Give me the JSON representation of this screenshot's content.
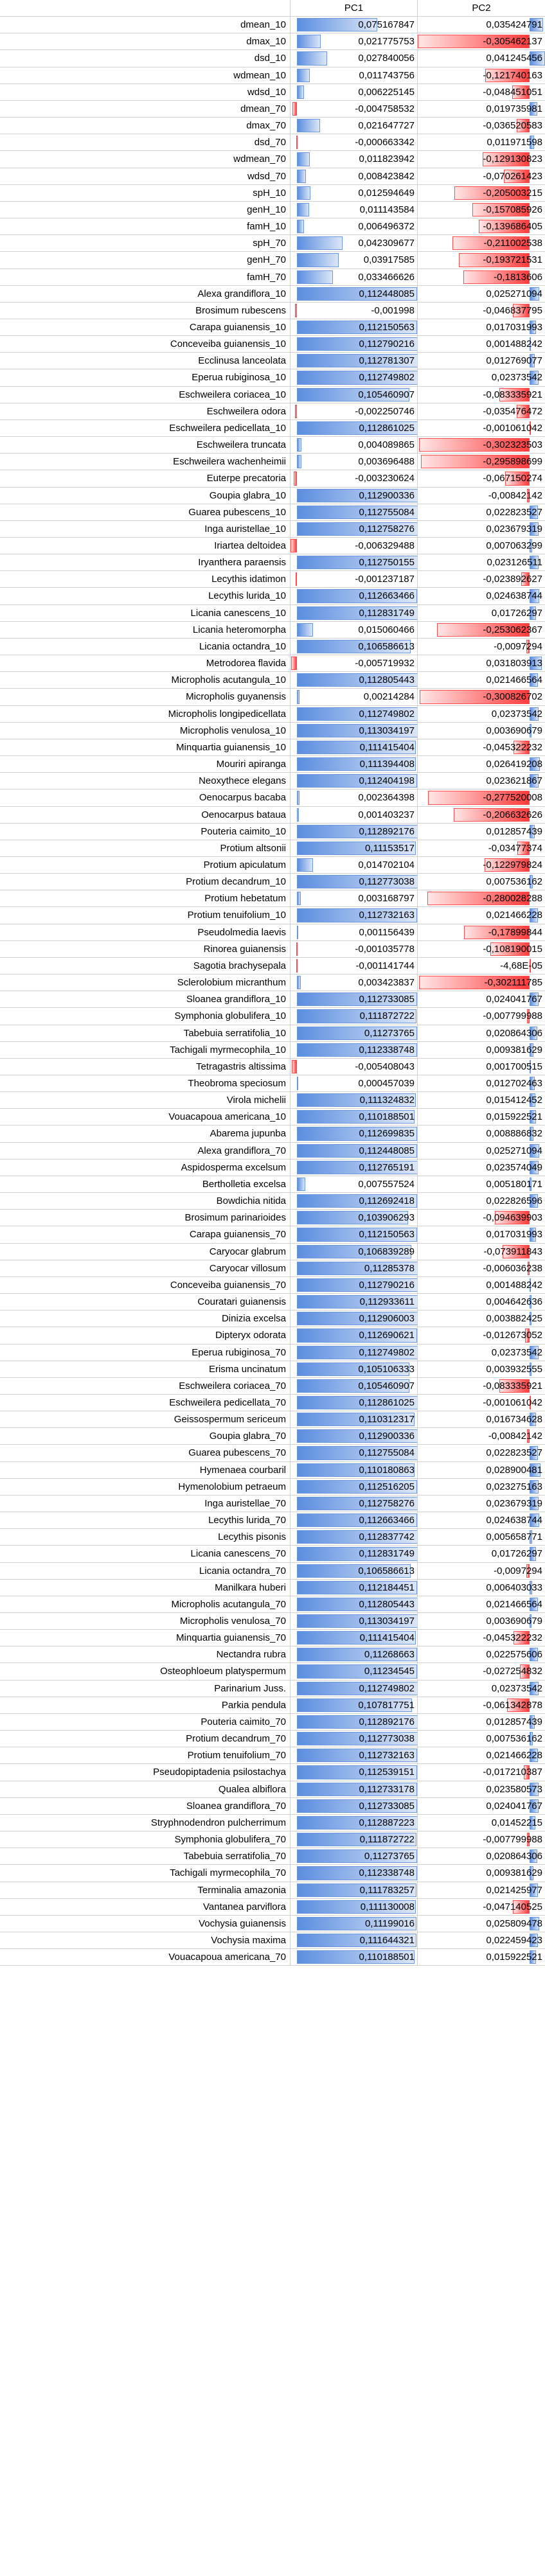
{
  "columns": [
    "PC1",
    "PC2"
  ],
  "rows": [
    [
      "dmean_10",
      "0,075167847",
      "0,035424791"
    ],
    [
      "dmax_10",
      "0,021775753",
      "-0,305462137"
    ],
    [
      "dsd_10",
      "0,027840056",
      "0,041245456"
    ],
    [
      "wdmean_10",
      "0,011743756",
      "-0,121740163"
    ],
    [
      "wdsd_10",
      "0,006225145",
      "-0,048451051"
    ],
    [
      "dmean_70",
      "-0,004758532",
      "0,019735981"
    ],
    [
      "dmax_70",
      "0,021647727",
      "-0,036520583"
    ],
    [
      "dsd_70",
      "-0,000663342",
      "0,011971598"
    ],
    [
      "wdmean_70",
      "0,011823942",
      "-0,129130823"
    ],
    [
      "wdsd_70",
      "0,008423842",
      "-0,070261423"
    ],
    [
      "spH_10",
      "0,012594649",
      "-0,205003215"
    ],
    [
      "genH_10",
      "0,011143584",
      "-0,157085926"
    ],
    [
      "famH_10",
      "0,006496372",
      "-0,139686405"
    ],
    [
      "spH_70",
      "0,042309677",
      "-0,211002538"
    ],
    [
      "genH_70",
      "0,03917585",
      "-0,193721531"
    ],
    [
      "famH_70",
      "0,033466626",
      "-0,1813606"
    ],
    [
      "Alexa grandiflora_10",
      "0,112448085",
      "0,025271094"
    ],
    [
      "Brosimum rubescens",
      "-0,001998",
      "-0,046837795"
    ],
    [
      "Carapa guianensis_10",
      "0,112150563",
      "0,017031993"
    ],
    [
      "Conceveiba guianensis_10",
      "0,112790216",
      "0,001488242"
    ],
    [
      "Ecclinusa lanceolata",
      "0,112781307",
      "0,012769077"
    ],
    [
      "Eperua rubiginosa_10",
      "0,112749802",
      "0,02373542"
    ],
    [
      "Eschweilera coriacea_10",
      "0,105460907",
      "-0,083335921"
    ],
    [
      "Eschweilera odora",
      "-0,002250746",
      "-0,035476472"
    ],
    [
      "Eschweilera pedicellata_10",
      "0,112861025",
      "-0,001061042"
    ],
    [
      "Eschweilera truncata",
      "0,004089865",
      "-0,302323503"
    ],
    [
      "Eschweilera wachenheimii",
      "0,003696488",
      "-0,295898699"
    ],
    [
      "Euterpe precatoria",
      "-0,003230624",
      "-0,067150274"
    ],
    [
      "Goupia glabra_10",
      "0,112900336",
      "-0,00842142"
    ],
    [
      "Guarea pubescens_10",
      "0,112755084",
      "0,022823527"
    ],
    [
      "Inga auristellae_10",
      "0,112758276",
      "0,023679319"
    ],
    [
      "Iriartea deltoidea",
      "-0,006329488",
      "0,007063299"
    ],
    [
      "Iryanthera paraensis",
      "0,112750155",
      "0,023126511"
    ],
    [
      "Lecythis idatimon",
      "-0,001237187",
      "-0,023892627"
    ],
    [
      "Lecythis lurida_10",
      "0,112663466",
      "0,024638744"
    ],
    [
      "Licania canescens_10",
      "0,112831749",
      "0,01726297"
    ],
    [
      "Licania heteromorpha",
      "0,015060466",
      "-0,253062367"
    ],
    [
      "Licania octandra_10",
      "0,106586613",
      "-0,0097294"
    ],
    [
      "Metrodorea flavida",
      "-0,005719932",
      "0,031803913"
    ],
    [
      "Micropholis acutangula_10",
      "0,112805443",
      "0,021466564"
    ],
    [
      "Micropholis guyanensis",
      "0,00214284",
      "-0,300826702"
    ],
    [
      "Micropholis longipedicellata",
      "0,112749802",
      "0,02373542"
    ],
    [
      "Micropholis venulosa_10",
      "0,113034197",
      "0,003690679"
    ],
    [
      "Minquartia guianensis_10",
      "0,111415404",
      "-0,045322232"
    ],
    [
      "Mouriri apiranga",
      "0,111394408",
      "0,026419208"
    ],
    [
      "Neoxythece elegans",
      "0,112404198",
      "0,023621867"
    ],
    [
      "Oenocarpus bacaba",
      "0,002364398",
      "-0,277520008"
    ],
    [
      "Oenocarpus bataua",
      "0,001403237",
      "-0,206632626"
    ],
    [
      "Pouteria caimito_10",
      "0,112892176",
      "0,012857439"
    ],
    [
      "Protium altsonii",
      "0,11153517",
      "-0,03477374"
    ],
    [
      "Protium apiculatum",
      "0,014702104",
      "-0,122979824"
    ],
    [
      "Protium decandrum_10",
      "0,112773038",
      "0,007536162"
    ],
    [
      "Protium hebetatum",
      "0,003168797",
      "-0,280028288"
    ],
    [
      "Protium tenuifolium_10",
      "0,112732163",
      "0,021466228"
    ],
    [
      "Pseudolmedia laevis",
      "0,001156439",
      "-0,17899844"
    ],
    [
      "Rinorea guianensis",
      "-0,001035778",
      "-0,108190015"
    ],
    [
      "Sagotia brachysepala",
      "-0,001141744",
      "-4,68E-05"
    ],
    [
      "Sclerolobium micranthum",
      "0,003423837",
      "-0,302111785"
    ],
    [
      "Sloanea grandiflora_10",
      "0,112733085",
      "0,024041767"
    ],
    [
      "Symphonia globulifera_10",
      "0,111872722",
      "-0,007799988"
    ],
    [
      "Tabebuia serratifolia_10",
      "0,11273765",
      "0,020864306"
    ],
    [
      "Tachigali myrmecophila_10",
      "0,112338748",
      "0,009381629"
    ],
    [
      "Tetragastris altissima",
      "-0,005408043",
      "0,001700515"
    ],
    [
      "Theobroma speciosum",
      "0,000457039",
      "0,012702463"
    ],
    [
      "Virola michelii",
      "0,111324832",
      "0,015412452"
    ],
    [
      "Vouacapoua americana_10",
      "0,110188501",
      "0,015922521"
    ],
    [
      "Abarema jupunba",
      "0,112699835",
      "0,008886832"
    ],
    [
      "Alexa grandiflora_70",
      "0,112448085",
      "0,025271094"
    ],
    [
      "Aspidosperma excelsum",
      "0,112765191",
      "0,023574049"
    ],
    [
      "Bertholletia excelsa",
      "0,007557524",
      "0,005180171"
    ],
    [
      "Bowdichia nitida",
      "0,112692418",
      "0,022826596"
    ],
    [
      "Brosimum parinarioides",
      "0,103906293",
      "-0,094639903"
    ],
    [
      "Carapa guianensis_70",
      "0,112150563",
      "0,017031993"
    ],
    [
      "Caryocar glabrum",
      "0,106839289",
      "-0,073911843"
    ],
    [
      "Caryocar villosum",
      "0,11285378",
      "-0,006036238"
    ],
    [
      "Conceveiba guianensis_70",
      "0,112790216",
      "0,001488242"
    ],
    [
      "Couratari guianensis",
      "0,112933611",
      "0,004642636"
    ],
    [
      "Dinizia excelsa",
      "0,112906003",
      "0,003882425"
    ],
    [
      "Dipteryx odorata",
      "0,112690621",
      "-0,012673052"
    ],
    [
      "Eperua rubiginosa_70",
      "0,112749802",
      "0,02373542"
    ],
    [
      "Erisma uncinatum",
      "0,105106333",
      "0,003932555"
    ],
    [
      "Eschweilera coriacea_70",
      "0,105460907",
      "-0,083335921"
    ],
    [
      "Eschweilera pedicellata_70",
      "0,112861025",
      "-0,001061042"
    ],
    [
      "Geissospermum sericeum",
      "0,110312317",
      "0,016734628"
    ],
    [
      "Goupia glabra_70",
      "0,112900336",
      "-0,00842142"
    ],
    [
      "Guarea pubescens_70",
      "0,112755084",
      "0,022823527"
    ],
    [
      "Hymenaea courbaril",
      "0,110180863",
      "0,028900481"
    ],
    [
      "Hymenolobium petraeum",
      "0,112516205",
      "0,023275163"
    ],
    [
      "Inga auristellae_70",
      "0,112758276",
      "0,023679319"
    ],
    [
      "Lecythis lurida_70",
      "0,112663466",
      "0,024638744"
    ],
    [
      "Lecythis pisonis",
      "0,112837742",
      "0,005658771"
    ],
    [
      "Licania canescens_70",
      "0,112831749",
      "0,01726297"
    ],
    [
      "Licania octandra_70",
      "0,106586613",
      "-0,0097294"
    ],
    [
      "Manilkara huberi",
      "0,112184451",
      "0,006403033"
    ],
    [
      "Micropholis acutangula_70",
      "0,112805443",
      "0,021466564"
    ],
    [
      "Micropholis venulosa_70",
      "0,113034197",
      "0,003690679"
    ],
    [
      "Minquartia guianensis_70",
      "0,111415404",
      "-0,045322232"
    ],
    [
      "Nectandra rubra",
      "0,11268663",
      "0,022575606"
    ],
    [
      "Osteophloeum platyspermum",
      "0,11234545",
      "-0,027254832"
    ],
    [
      "Parinarium Juss.",
      "0,112749802",
      "0,02373542"
    ],
    [
      "Parkia pendula",
      "0,107817751",
      "-0,061342878"
    ],
    [
      "Pouteria caimito_70",
      "0,112892176",
      "0,012857439"
    ],
    [
      "Protium decandrum_70",
      "0,112773038",
      "0,007536162"
    ],
    [
      "Protium tenuifolium_70",
      "0,112732163",
      "0,021466228"
    ],
    [
      "Pseudopiptadenia psilostachya",
      "0,112539151",
      "-0,017210387"
    ],
    [
      "Qualea albiflora",
      "0,112733178",
      "0,023580573"
    ],
    [
      "Sloanea grandiflora_70",
      "0,112733085",
      "0,024041767"
    ],
    [
      "Stryphnodendron pulcherrimum",
      "0,112887223",
      "0,01452215"
    ],
    [
      "Symphonia globulifera_70",
      "0,111872722",
      "-0,007799988"
    ],
    [
      "Tabebuia serratifolia_70",
      "0,11273765",
      "0,020864306"
    ],
    [
      "Tachigali myrmecophila_70",
      "0,112338748",
      "0,009381629"
    ],
    [
      "Terminalia amazonia",
      "0,111783257",
      "0,021425977"
    ],
    [
      "Vantanea parviflora",
      "0,111130008",
      "-0,047140525"
    ],
    [
      "Vochysia guianensis",
      "0,11199016",
      "0,025809478"
    ],
    [
      "Vochysia maxima",
      "0,111644321",
      "0,022459423"
    ],
    [
      "Vouacapoua americana_70",
      "0,110188501",
      "0,015922521"
    ]
  ],
  "colors": {
    "positive_bar": "#5b8ee0",
    "negative_bar": "#ff3b3b",
    "grid": "#d0d0d0"
  }
}
